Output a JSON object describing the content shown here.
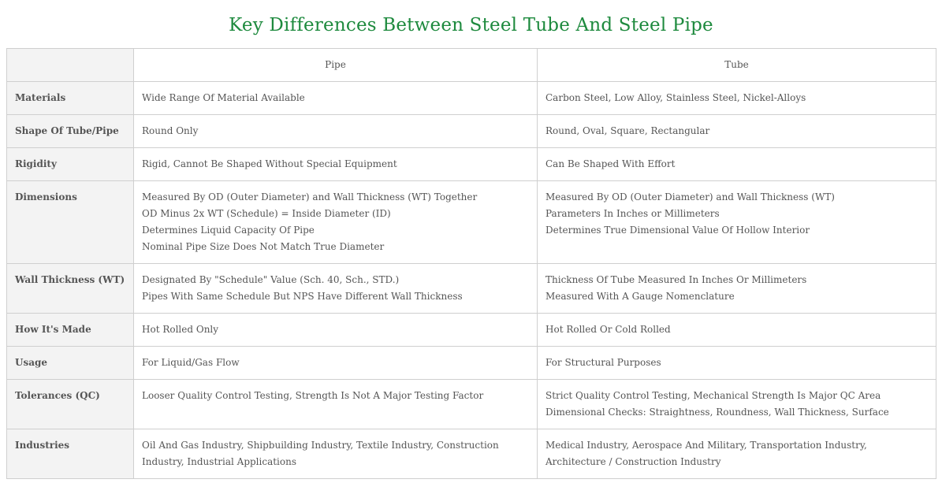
{
  "title": "Key Differences Between Steel Tube And Steel Pipe",
  "colors": {
    "title": "#1e8a3e",
    "header_bg": "#f3f3f3",
    "border": "#cfcfcf"
  },
  "columns": [
    "",
    "Pipe",
    "Tube"
  ],
  "rows": [
    {
      "label": "Materials",
      "pipe": [
        "Wide Range Of Material Available"
      ],
      "tube": [
        "Carbon Steel, Low Alloy, Stainless Steel, Nickel-Alloys"
      ]
    },
    {
      "label": "Shape Of Tube/Pipe",
      "pipe": [
        "Round Only"
      ],
      "tube": [
        "Round, Oval, Square, Rectangular"
      ]
    },
    {
      "label": "Rigidity",
      "pipe": [
        "Rigid, Cannot Be Shaped Without Special Equipment"
      ],
      "tube": [
        "Can Be Shaped With Effort"
      ]
    },
    {
      "label": "Dimensions",
      "pipe": [
        "Measured By OD (Outer Diameter) and Wall Thickness (WT) Together",
        "OD Minus 2x WT (Schedule) = Inside Diameter (ID)",
        "Determines Liquid Capacity Of Pipe",
        "Nominal Pipe Size Does Not Match True Diameter"
      ],
      "tube": [
        "Measured By OD (Outer Diameter) and Wall Thickness (WT)",
        "Parameters In Inches or Millimeters",
        "Determines True Dimensional Value Of Hollow Interior"
      ]
    },
    {
      "label": "Wall Thickness (WT)",
      "pipe": [
        "Designated By \"Schedule\" Value (Sch. 40, Sch., STD.)",
        "Pipes With Same Schedule But NPS Have Different Wall Thickness"
      ],
      "tube": [
        "Thickness Of Tube Measured In Inches Or Millimeters",
        "Measured With A Gauge Nomenclature"
      ]
    },
    {
      "label": "How It's Made",
      "pipe": [
        "Hot Rolled Only"
      ],
      "tube": [
        "Hot Rolled Or Cold Rolled"
      ]
    },
    {
      "label": "Usage",
      "pipe": [
        "For Liquid/Gas Flow"
      ],
      "tube": [
        "For Structural Purposes"
      ]
    },
    {
      "label": "Tolerances (QC)",
      "pipe": [
        "Looser Quality Control Testing, Strength Is Not A Major Testing Factor"
      ],
      "tube": [
        "Strict Quality Control Testing, Mechanical Strength Is Major QC Area",
        "Dimensional Checks: Straightness, Roundness, Wall Thickness, Surface"
      ]
    },
    {
      "label": "Industries",
      "pipe": [
        "Oil And Gas Industry, Shipbuilding Industry, Textile Industry, Construction Industry, Industrial Applications"
      ],
      "tube": [
        "Medical Industry, Aerospace And Military, Transportation Industry, Architecture / Construction Industry"
      ]
    }
  ]
}
